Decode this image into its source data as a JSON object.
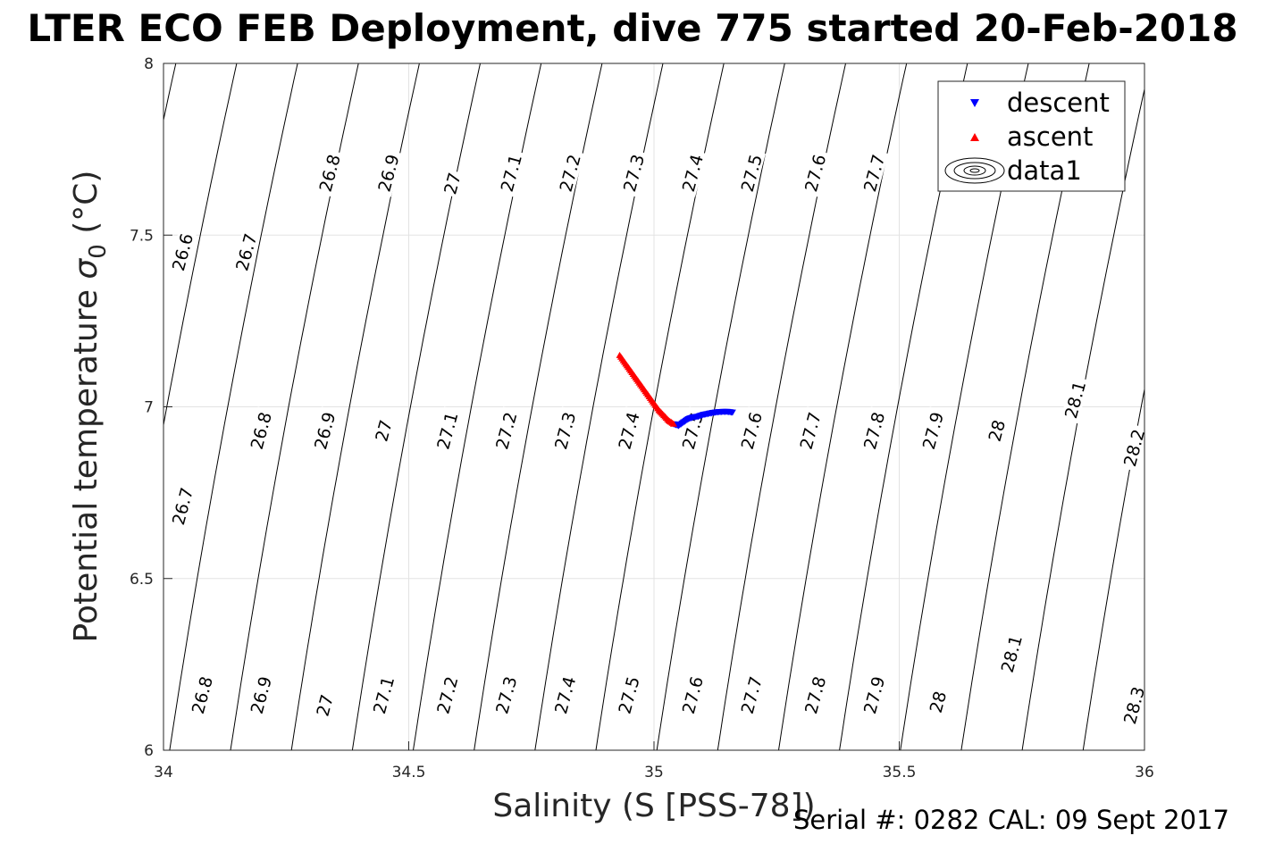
{
  "chart_data": {
    "type": "scatter",
    "title": "LTER ECO FEB Deployment, dive 775 started 20-Feb-2018",
    "xlabel": "Salinity (S [PSS-78])",
    "ylabel_main": "Potential temperature ",
    "ylabel_symbol": "σ",
    "ylabel_subscript": "0",
    "ylabel_unit": " (°C)",
    "xlim": [
      34,
      36
    ],
    "ylim": [
      6,
      8
    ],
    "xticks": [
      34,
      34.5,
      35,
      35.5,
      36
    ],
    "yticks": [
      6,
      6.5,
      7,
      7.5,
      8
    ],
    "xtick_labels": [
      "34",
      "34.5",
      "35",
      "35.5",
      "36"
    ],
    "ytick_labels": [
      "6",
      "6.5",
      "7",
      "7.5",
      "8"
    ],
    "grid": true,
    "legend_position": "top-right",
    "series": [
      {
        "name": "descent",
        "marker": "triangle-down",
        "color": "#0000ff",
        "x": [
          35.04,
          35.05,
          35.06,
          35.07,
          35.08,
          35.09,
          35.1,
          35.11,
          35.12,
          35.13,
          35.14,
          35.15,
          35.16
        ],
        "y": [
          6.95,
          6.945,
          6.955,
          6.965,
          6.97,
          6.972,
          6.977,
          6.98,
          6.983,
          6.985,
          6.986,
          6.986,
          6.984
        ]
      },
      {
        "name": "ascent",
        "marker": "triangle-up",
        "color": "#ff0000",
        "x": [
          34.93,
          34.94,
          34.95,
          34.96,
          34.97,
          34.98,
          34.99,
          35.0,
          35.01,
          35.02,
          35.03,
          35.04
        ],
        "y": [
          7.15,
          7.13,
          7.11,
          7.09,
          7.07,
          7.05,
          7.03,
          7.01,
          6.99,
          6.975,
          6.96,
          6.95
        ]
      },
      {
        "name": "data1",
        "marker": "contour",
        "color": "#000000"
      }
    ],
    "contour_levels": [
      26.6,
      26.7,
      26.8,
      26.9,
      27,
      27.1,
      27.2,
      27.3,
      27.4,
      27.5,
      27.6,
      27.7,
      27.8,
      27.9,
      28,
      28.1,
      28.2,
      28.3
    ],
    "contour_level_labels": [
      "26.6",
      "26.7",
      "26.8",
      "26.9",
      "27",
      "27.1",
      "27.2",
      "27.3",
      "27.4",
      "27.5",
      "27.6",
      "27.7",
      "27.8",
      "27.9",
      "28",
      "28.1",
      "28.2",
      "28.3"
    ],
    "contour_labels": [
      {
        "level": "26.6",
        "x": 34.04,
        "y": 7.45
      },
      {
        "level": "26.7",
        "x": 34.17,
        "y": 7.45
      },
      {
        "level": "26.8",
        "x": 34.34,
        "y": 7.68
      },
      {
        "level": "26.9",
        "x": 34.46,
        "y": 7.68
      },
      {
        "level": "27",
        "x": 34.59,
        "y": 7.65
      },
      {
        "level": "27.1",
        "x": 34.71,
        "y": 7.68
      },
      {
        "level": "27.2",
        "x": 34.83,
        "y": 7.68
      },
      {
        "level": "27.3",
        "x": 34.96,
        "y": 7.68
      },
      {
        "level": "27.4",
        "x": 35.08,
        "y": 7.68
      },
      {
        "level": "27.5",
        "x": 35.2,
        "y": 7.68
      },
      {
        "level": "27.6",
        "x": 35.33,
        "y": 7.68
      },
      {
        "level": "27.7",
        "x": 35.45,
        "y": 7.68
      },
      {
        "level": "26.8",
        "x": 34.2,
        "y": 6.93
      },
      {
        "level": "26.9",
        "x": 34.33,
        "y": 6.93
      },
      {
        "level": "27",
        "x": 34.45,
        "y": 6.93
      },
      {
        "level": "27.1",
        "x": 34.58,
        "y": 6.93
      },
      {
        "level": "27.2",
        "x": 34.7,
        "y": 6.93
      },
      {
        "level": "27.3",
        "x": 34.82,
        "y": 6.93
      },
      {
        "level": "27.4",
        "x": 34.95,
        "y": 6.93
      },
      {
        "level": "27.5",
        "x": 35.08,
        "y": 6.93
      },
      {
        "level": "27.6",
        "x": 35.2,
        "y": 6.93
      },
      {
        "level": "27.7",
        "x": 35.32,
        "y": 6.93
      },
      {
        "level": "27.8",
        "x": 35.45,
        "y": 6.93
      },
      {
        "level": "27.9",
        "x": 35.57,
        "y": 6.93
      },
      {
        "level": "28",
        "x": 35.7,
        "y": 6.93
      },
      {
        "level": "28.1",
        "x": 35.86,
        "y": 7.02
      },
      {
        "level": "28.2",
        "x": 35.98,
        "y": 6.88
      },
      {
        "level": "26.7",
        "x": 34.04,
        "y": 6.71
      },
      {
        "level": "26.8",
        "x": 34.08,
        "y": 6.16
      },
      {
        "level": "26.9",
        "x": 34.2,
        "y": 6.16
      },
      {
        "level": "27",
        "x": 34.33,
        "y": 6.13
      },
      {
        "level": "27.1",
        "x": 34.45,
        "y": 6.16
      },
      {
        "level": "27.2",
        "x": 34.58,
        "y": 6.16
      },
      {
        "level": "27.3",
        "x": 34.7,
        "y": 6.16
      },
      {
        "level": "27.4",
        "x": 34.82,
        "y": 6.16
      },
      {
        "level": "27.5",
        "x": 34.95,
        "y": 6.16
      },
      {
        "level": "27.6",
        "x": 35.08,
        "y": 6.16
      },
      {
        "level": "27.7",
        "x": 35.2,
        "y": 6.16
      },
      {
        "level": "27.8",
        "x": 35.33,
        "y": 6.16
      },
      {
        "level": "27.9",
        "x": 35.45,
        "y": 6.16
      },
      {
        "level": "28",
        "x": 35.58,
        "y": 6.14
      },
      {
        "level": "28.1",
        "x": 35.73,
        "y": 6.28
      },
      {
        "level": "28.3",
        "x": 35.98,
        "y": 6.13
      }
    ]
  },
  "footer": "Serial #: 0282  CAL: 09 Sept 2017",
  "colors": {
    "grid": "#e3e3e3",
    "axis": "#262626",
    "contour": "#000000"
  }
}
